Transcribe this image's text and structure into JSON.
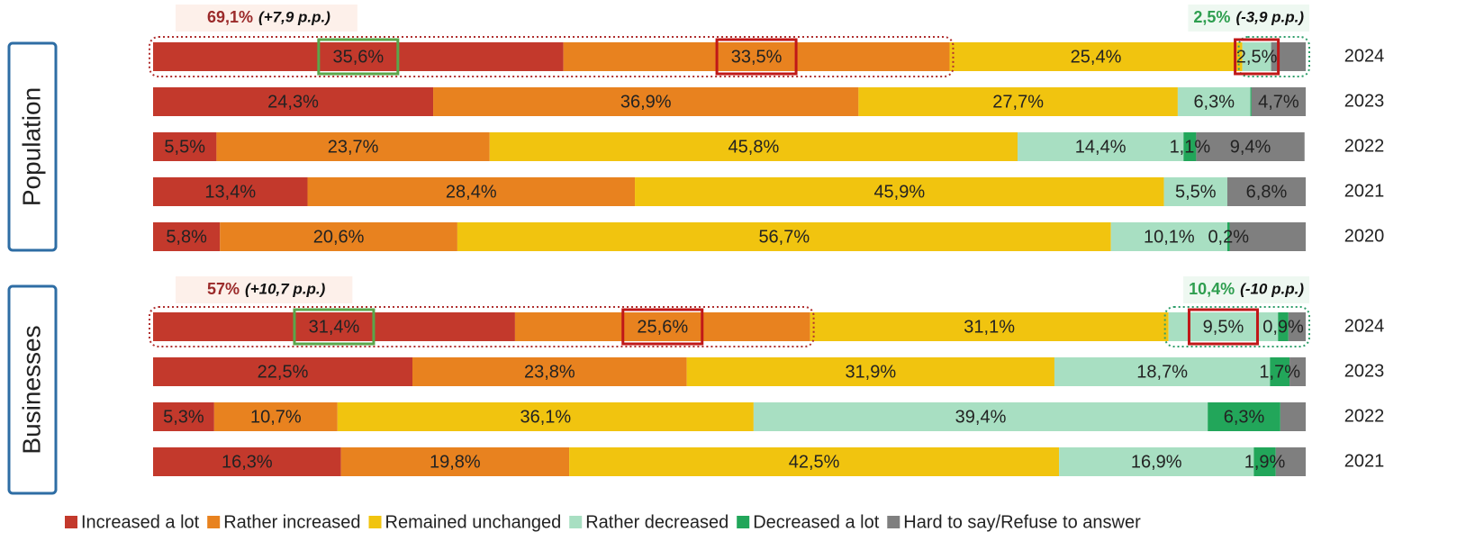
{
  "chart_data": {
    "type": "stacked_bar_horizontal",
    "series": [
      {
        "name": "Increased a lot",
        "color": "#c3392c"
      },
      {
        "name": "Rather increased",
        "color": "#e8821f"
      },
      {
        "name": "Remained unchanged",
        "color": "#f1c40f"
      },
      {
        "name": "Rather decreased",
        "color": "#a8dfc2"
      },
      {
        "name": "Decreased a lot",
        "color": "#22a65a"
      },
      {
        "name": "Hard to say/Refuse to answer",
        "color": "#7f7f7f"
      }
    ],
    "xlim": [
      0,
      100
    ],
    "panels": [
      {
        "title": "Population",
        "categories": [
          "2024",
          "2023",
          "2022",
          "2021",
          "2020"
        ],
        "annotations": [
          {
            "text": "69,1%",
            "detail": "(+7,9 p.p.)",
            "color": "#9b2a2a"
          },
          {
            "text": "2,5%",
            "detail": "(-3,9 p.p.)",
            "color": "#2e9e4f"
          }
        ],
        "series": [
          {
            "values": [
              35.6,
              24.3,
              5.5,
              13.4,
              5.8
            ],
            "value_labels": [
              "35,6%",
              "24,3%",
              "5,5%",
              "13,4%",
              "5,8%"
            ]
          },
          {
            "values": [
              33.5,
              36.9,
              23.7,
              28.4,
              20.6
            ],
            "value_labels": [
              "33,5%",
              "36,9%",
              "23,7%",
              "28,4%",
              "20,6%"
            ]
          },
          {
            "values": [
              25.4,
              27.7,
              45.8,
              45.9,
              56.7
            ],
            "value_labels": [
              "25,4%",
              "27,7%",
              "45,8%",
              "45,9%",
              "56,7%"
            ]
          },
          {
            "values": [
              2.5,
              6.3,
              14.4,
              5.5,
              10.1
            ],
            "value_labels": [
              "2,5%",
              "6,3%",
              "14,4%",
              "5,5%",
              "10,1%"
            ]
          },
          {
            "values": [
              0,
              0.1,
              1.1,
              0,
              0.2
            ],
            "value_labels": [
              null,
              null,
              "1,1%",
              null,
              "0,2%"
            ]
          },
          {
            "values": [
              3.0,
              4.7,
              9.4,
              6.8,
              6.6
            ],
            "value_labels": [
              null,
              "4,7%",
              "9,4%",
              "6,8%",
              null
            ]
          }
        ]
      },
      {
        "title": "Businesses",
        "categories": [
          "2024",
          "2023",
          "2022",
          "2021"
        ],
        "annotations": [
          {
            "text": "57%",
            "detail": "(+10,7 p.p.)",
            "color": "#9b2a2a"
          },
          {
            "text": "10,4%",
            "detail": "(-10 p.p.)",
            "color": "#2e9e4f"
          }
        ],
        "series": [
          {
            "values": [
              31.4,
              22.5,
              5.3,
              16.3
            ],
            "value_labels": [
              "31,4%",
              "22,5%",
              "5,3%",
              "16,3%"
            ]
          },
          {
            "values": [
              25.6,
              23.8,
              10.7,
              19.8
            ],
            "value_labels": [
              "25,6%",
              "23,8%",
              "10,7%",
              "19,8%"
            ]
          },
          {
            "values": [
              31.1,
              31.9,
              36.1,
              42.5
            ],
            "value_labels": [
              "31,1%",
              "31,9%",
              "36,1%",
              "42,5%"
            ]
          },
          {
            "values": [
              9.5,
              18.7,
              39.4,
              16.9
            ],
            "value_labels": [
              "9,5%",
              "18,7%",
              "39,4%",
              "16,9%"
            ]
          },
          {
            "values": [
              0.9,
              1.7,
              6.3,
              1.9
            ],
            "value_labels": [
              "0,9%",
              "1,7%",
              "6,3%",
              "1,9%"
            ]
          },
          {
            "values": [
              1.5,
              1.4,
              2.2,
              2.6
            ],
            "value_labels": [
              null,
              null,
              null,
              null
            ]
          }
        ]
      }
    ]
  }
}
